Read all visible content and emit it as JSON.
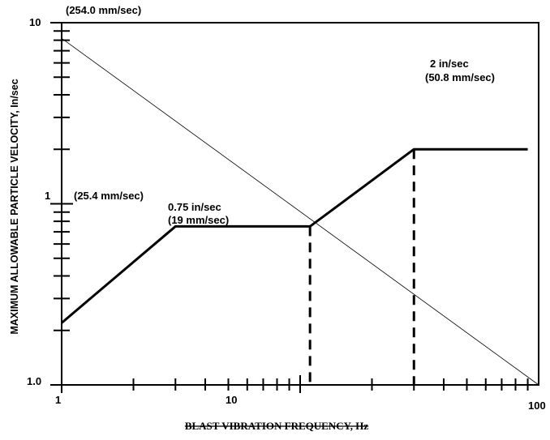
{
  "chart_data": {
    "type": "line",
    "title": "",
    "xlabel": "BLAST VIBRATION FREQUENCY, Hz",
    "ylabel": "MAXIMUM ALLOWABLE PARTICLE VELOCITY, In/sec",
    "x_scale": "log",
    "y_scale": "log",
    "xlim": [
      1,
      100
    ],
    "ylim": [
      0.1,
      10
    ],
    "x_tick_labels": [
      "1",
      "10",
      "100"
    ],
    "y_tick_labels": [
      "1.0",
      "1",
      "10"
    ],
    "grid": false,
    "series": [
      {
        "x": [
          1,
          3,
          11,
          30,
          90
        ],
        "y": [
          0.22,
          0.75,
          0.75,
          2,
          2
        ]
      }
    ],
    "reference_line": {
      "x": [
        1,
        100
      ],
      "y": [
        8.2,
        0.1
      ]
    },
    "vertical_dashed_lines": [
      {
        "x": 11,
        "y_top": 0.75
      },
      {
        "x": 30,
        "y_top": 2
      }
    ],
    "annotations": [
      {
        "id": "top-mm",
        "line1": "(254.0 mm/sec)"
      },
      {
        "id": "mid-mm",
        "line1": "(25.4 mm/sec)"
      },
      {
        "id": "plateau1",
        "line1": "0.75 in/sec",
        "line2": "(19 mm/sec)"
      },
      {
        "id": "plateau2",
        "line1": "2 in/sec",
        "line2": "(50.8 mm/sec)"
      }
    ]
  }
}
